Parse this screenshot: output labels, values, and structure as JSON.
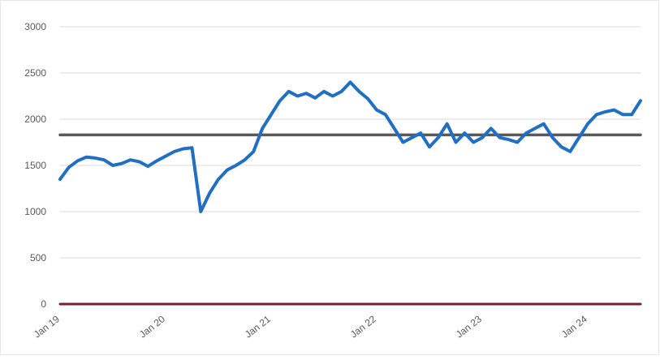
{
  "chart_data": {
    "type": "line",
    "title": "",
    "xlabel": "",
    "ylabel": "",
    "ylim": [
      0,
      3000
    ],
    "y_ticks": [
      "0",
      "500",
      "1000",
      "1500",
      "2000",
      "2500",
      "3000"
    ],
    "x_tick_labels": [
      "Jan 19",
      "Jan 20",
      "Jan 21",
      "Jan 22",
      "Jan 23",
      "Jan 24"
    ],
    "x_range": [
      "2019-01",
      "2024-07"
    ],
    "grid": true,
    "legend": "none",
    "colors": {
      "series": "#1f6fc5",
      "average": "#595959",
      "zero": "#7b1f2e",
      "grid": "#d9d9d9"
    },
    "series": [
      {
        "color": "#1f6fc5",
        "x": [
          "2019-01",
          "2019-02",
          "2019-03",
          "2019-04",
          "2019-05",
          "2019-06",
          "2019-07",
          "2019-08",
          "2019-09",
          "2019-10",
          "2019-11",
          "2019-12",
          "2020-01",
          "2020-02",
          "2020-03",
          "2020-04",
          "2020-05",
          "2020-06",
          "2020-07",
          "2020-08",
          "2020-09",
          "2020-10",
          "2020-11",
          "2020-12",
          "2021-01",
          "2021-02",
          "2021-03",
          "2021-04",
          "2021-05",
          "2021-06",
          "2021-07",
          "2021-08",
          "2021-09",
          "2021-10",
          "2021-11",
          "2021-12",
          "2022-01",
          "2022-02",
          "2022-03",
          "2022-04",
          "2022-05",
          "2022-06",
          "2022-07",
          "2022-08",
          "2022-09",
          "2022-10",
          "2022-11",
          "2022-12",
          "2023-01",
          "2023-02",
          "2023-03",
          "2023-04",
          "2023-05",
          "2023-06",
          "2023-07",
          "2023-08",
          "2023-09",
          "2023-10",
          "2023-11",
          "2023-12",
          "2024-01",
          "2024-02",
          "2024-03",
          "2024-04",
          "2024-05",
          "2024-06",
          "2024-07"
        ],
        "values": [
          1350,
          1480,
          1550,
          1590,
          1580,
          1560,
          1500,
          1520,
          1560,
          1540,
          1490,
          1550,
          1600,
          1650,
          1680,
          1690,
          1000,
          1200,
          1350,
          1450,
          1500,
          1560,
          1650,
          1900,
          2050,
          2200,
          2300,
          2250,
          2280,
          2230,
          2300,
          2250,
          2300,
          2400,
          2300,
          2220,
          2100,
          2050,
          1900,
          1750,
          1800,
          1850,
          1700,
          1800,
          1950,
          1750,
          1850,
          1750,
          1800,
          1900,
          1800,
          1780,
          1750,
          1850,
          1900,
          1950,
          1800,
          1700,
          1650,
          1800,
          1950,
          2050,
          2080,
          2100,
          2050,
          2050,
          2200
        ]
      },
      {
        "color": "#595959",
        "x": [
          "2019-01",
          "2024-07"
        ],
        "values": [
          1830,
          1830
        ]
      },
      {
        "color": "#7b1f2e",
        "x": [
          "2019-01",
          "2024-07"
        ],
        "values": [
          0,
          0
        ]
      }
    ]
  }
}
